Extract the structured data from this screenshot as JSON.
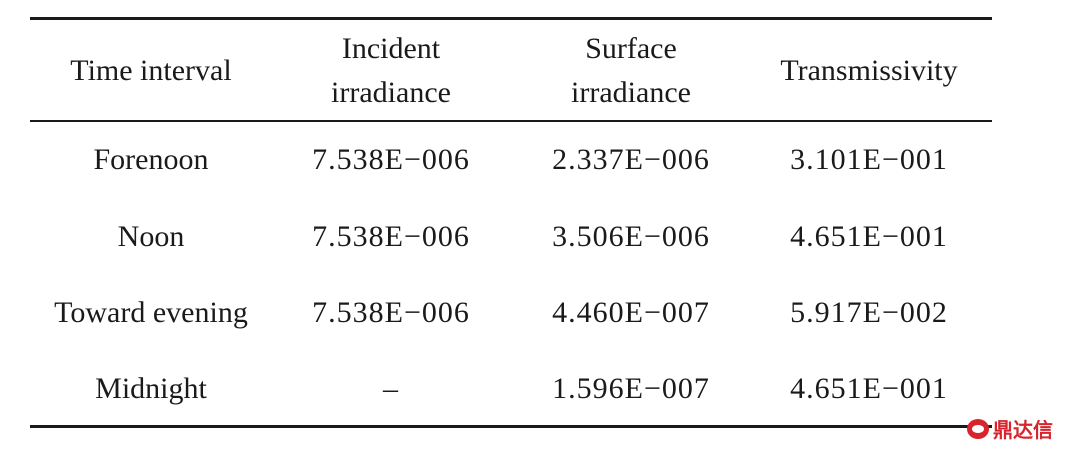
{
  "table": {
    "header": [
      [
        "Time interval"
      ],
      [
        "Incident",
        "irradiance"
      ],
      [
        "Surface",
        "irradiance"
      ],
      [
        "Transmissivity"
      ]
    ],
    "rows": [
      [
        "Forenoon",
        "7.538E−006",
        "2.337E−006",
        "3.101E−001"
      ],
      [
        "Noon",
        "7.538E−006",
        "3.506E−006",
        "4.651E−001"
      ],
      [
        "Toward evening",
        "7.538E−006",
        "4.460E−007",
        "5.917E−002"
      ],
      [
        "Midnight",
        "–",
        "1.596E−007",
        "4.651E−001"
      ]
    ]
  },
  "watermark": "鼎达信"
}
